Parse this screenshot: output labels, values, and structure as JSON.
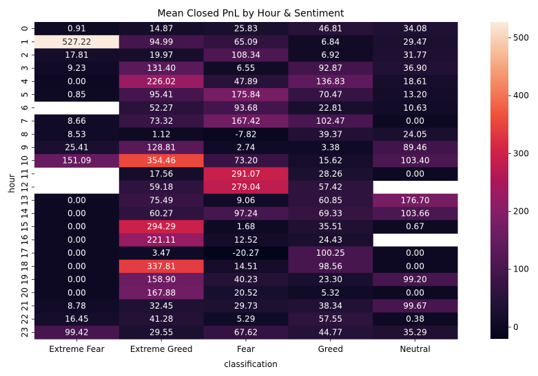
{
  "chart_data": {
    "type": "heatmap",
    "title": "Mean Closed PnL by Hour & Sentiment",
    "xlabel": "classification",
    "ylabel": "hour",
    "columns": [
      "Extreme Fear",
      "Extreme Greed",
      "Fear",
      "Greed",
      "Neutral"
    ],
    "rows": [
      "0",
      "1",
      "2",
      "3",
      "4",
      "5",
      "6",
      "7",
      "8",
      "9",
      "10",
      "11",
      "12",
      "13",
      "14",
      "15",
      "16",
      "17",
      "18",
      "19",
      "20",
      "21",
      "22",
      "23"
    ],
    "values": [
      [
        0.91,
        14.87,
        25.83,
        46.81,
        34.08
      ],
      [
        527.22,
        94.99,
        65.09,
        6.84,
        29.47
      ],
      [
        17.81,
        19.97,
        108.34,
        6.92,
        31.77
      ],
      [
        9.23,
        131.4,
        6.55,
        92.87,
        36.9
      ],
      [
        0.0,
        226.02,
        47.89,
        136.83,
        18.61
      ],
      [
        0.85,
        95.41,
        175.84,
        70.47,
        13.2
      ],
      [
        null,
        52.27,
        93.68,
        22.81,
        10.63
      ],
      [
        8.66,
        73.32,
        167.42,
        102.47,
        0.0
      ],
      [
        8.53,
        1.12,
        -7.82,
        39.37,
        24.05
      ],
      [
        25.41,
        128.81,
        2.74,
        3.38,
        89.46
      ],
      [
        151.09,
        354.46,
        73.2,
        15.62,
        103.4
      ],
      [
        null,
        17.56,
        291.07,
        28.26,
        0.0
      ],
      [
        null,
        59.18,
        279.04,
        57.42,
        null
      ],
      [
        0.0,
        75.49,
        9.06,
        60.85,
        176.7
      ],
      [
        0.0,
        60.27,
        97.24,
        69.33,
        103.66
      ],
      [
        0.0,
        294.29,
        1.68,
        35.51,
        0.67
      ],
      [
        0.0,
        221.11,
        12.52,
        24.43,
        null
      ],
      [
        0.0,
        3.47,
        -20.27,
        100.25,
        0.0
      ],
      [
        0.0,
        337.81,
        14.51,
        98.56,
        0.0
      ],
      [
        0.0,
        158.9,
        40.23,
        23.3,
        99.2
      ],
      [
        0.0,
        167.88,
        20.52,
        5.32,
        0.0
      ],
      [
        8.78,
        32.45,
        29.73,
        38.34,
        99.67
      ],
      [
        16.45,
        41.28,
        5.29,
        57.55,
        0.38
      ],
      [
        99.42,
        29.55,
        67.62,
        44.77,
        35.29
      ]
    ],
    "color_range": [
      -20.27,
      527.22
    ],
    "colormap": "rocket",
    "colorbar_ticks": [
      0,
      100,
      200,
      300,
      400,
      500
    ]
  }
}
